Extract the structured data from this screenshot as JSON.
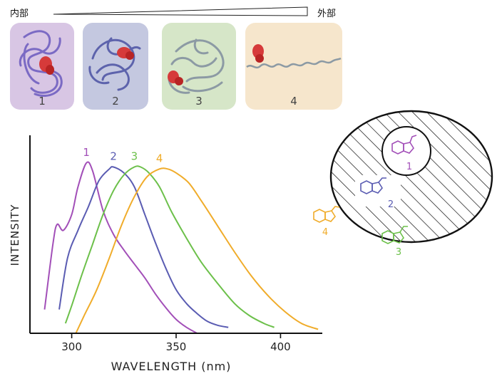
{
  "gradient": {
    "left_label": "内部",
    "right_label": "外部"
  },
  "cards": [
    {
      "label": "1",
      "bg": "#d8c6e4"
    },
    {
      "label": "2",
      "bg": "#c4c8e0"
    },
    {
      "label": "3",
      "bg": "#d6e6c8"
    },
    {
      "label": "4",
      "bg": "#f6e6cc"
    }
  ],
  "chart_data": {
    "type": "line",
    "xlabel": "WAVELENGTH (nm)",
    "ylabel": "INTENSITY",
    "x_ticks": [
      "300",
      "350",
      "400"
    ],
    "xlim": [
      280,
      420
    ],
    "ylim": [
      0,
      1
    ],
    "grid": false,
    "series": [
      {
        "name": "1",
        "color": "#a24fb8",
        "x": [
          287,
          291,
          293,
          296,
          300,
          303,
          307,
          310,
          315,
          320,
          325,
          330,
          335,
          340,
          345,
          350,
          355,
          360
        ],
        "y": [
          0.12,
          0.45,
          0.55,
          0.52,
          0.6,
          0.74,
          0.86,
          0.82,
          0.62,
          0.5,
          0.42,
          0.35,
          0.28,
          0.2,
          0.13,
          0.07,
          0.03,
          0.0
        ]
      },
      {
        "name": "2",
        "color": "#5a5cb2",
        "x": [
          294,
          298,
          303,
          308,
          313,
          318,
          320,
          325,
          330,
          335,
          340,
          345,
          350,
          355,
          360,
          365,
          370,
          375
        ],
        "y": [
          0.12,
          0.38,
          0.52,
          0.64,
          0.77,
          0.83,
          0.84,
          0.81,
          0.74,
          0.6,
          0.46,
          0.33,
          0.22,
          0.15,
          0.1,
          0.06,
          0.04,
          0.03
        ]
      },
      {
        "name": "3",
        "color": "#6cc04a",
        "x": [
          297,
          300,
          305,
          310,
          315,
          320,
          325,
          330,
          333,
          337,
          342,
          348,
          355,
          362,
          370,
          378,
          385,
          392,
          397
        ],
        "y": [
          0.05,
          0.14,
          0.3,
          0.45,
          0.6,
          0.72,
          0.8,
          0.84,
          0.84,
          0.81,
          0.74,
          0.61,
          0.48,
          0.36,
          0.25,
          0.15,
          0.09,
          0.05,
          0.03
        ]
      },
      {
        "name": "4",
        "color": "#f0ac2a",
        "x": [
          302,
          306,
          312,
          318,
          324,
          330,
          336,
          342,
          346,
          350,
          356,
          362,
          370,
          378,
          386,
          394,
          402,
          410,
          418
        ],
        "y": [
          0.0,
          0.09,
          0.22,
          0.38,
          0.55,
          0.69,
          0.79,
          0.83,
          0.83,
          0.81,
          0.76,
          0.67,
          0.54,
          0.41,
          0.29,
          0.19,
          0.11,
          0.05,
          0.02
        ]
      }
    ]
  },
  "diagram": {
    "inner_label": "1",
    "embedded_label": "2",
    "outside_labels": [
      "3",
      "4"
    ],
    "label_colors": [
      "#a24fb8",
      "#5a5cb2",
      "#6cc04a",
      "#f0ac2a"
    ]
  }
}
